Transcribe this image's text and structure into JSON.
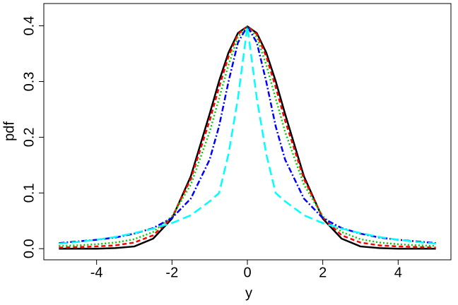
{
  "chart_data": {
    "type": "line",
    "xlabel": "y",
    "ylabel": "pdf",
    "x": [
      -5,
      -4.5,
      -4,
      -3.5,
      -3,
      -2.5,
      -2,
      -1.5,
      -1,
      -0.75,
      -0.5,
      -0.25,
      0,
      0.25,
      0.5,
      0.75,
      1,
      1.5,
      2,
      2.5,
      3,
      3.5,
      4,
      4.5,
      5
    ],
    "series": [
      {
        "color": "#000000",
        "linestyle": "solid",
        "values": [
          0,
          0,
          0,
          0.001,
          0.004,
          0.018,
          0.054,
          0.13,
          0.242,
          0.301,
          0.352,
          0.387,
          0.399,
          0.387,
          0.352,
          0.301,
          0.242,
          0.13,
          0.054,
          0.018,
          0.004,
          0.001,
          0,
          0,
          0
        ]
      },
      {
        "color": "#ff0000",
        "linestyle": "dashed",
        "values": [
          0.002,
          0.003,
          0.004,
          0.006,
          0.011,
          0.024,
          0.056,
          0.125,
          0.23,
          0.29,
          0.345,
          0.385,
          0.399,
          0.385,
          0.345,
          0.29,
          0.23,
          0.125,
          0.056,
          0.024,
          0.011,
          0.006,
          0.004,
          0.003,
          0.002
        ]
      },
      {
        "color": "#00cd00",
        "linestyle": "dotted",
        "values": [
          0.005,
          0.006,
          0.008,
          0.011,
          0.017,
          0.03,
          0.058,
          0.115,
          0.21,
          0.27,
          0.33,
          0.38,
          0.399,
          0.38,
          0.33,
          0.27,
          0.21,
          0.115,
          0.058,
          0.03,
          0.017,
          0.011,
          0.008,
          0.006,
          0.005
        ]
      },
      {
        "color": "#0000ff",
        "linestyle": "dotdash",
        "values": [
          0.01,
          0.013,
          0.016,
          0.02,
          0.027,
          0.037,
          0.055,
          0.09,
          0.16,
          0.22,
          0.3,
          0.37,
          0.399,
          0.37,
          0.3,
          0.22,
          0.16,
          0.09,
          0.055,
          0.037,
          0.027,
          0.02,
          0.016,
          0.013,
          0.01
        ]
      },
      {
        "color": "#00ffff",
        "linestyle": "longdash",
        "values": [
          0.009,
          0.012,
          0.016,
          0.021,
          0.028,
          0.036,
          0.046,
          0.06,
          0.085,
          0.1,
          0.17,
          0.27,
          0.399,
          0.27,
          0.17,
          0.1,
          0.085,
          0.06,
          0.046,
          0.036,
          0.028,
          0.021,
          0.016,
          0.012,
          0.009
        ]
      }
    ],
    "xlim": [
      -5.4,
      5.4
    ],
    "ylim": [
      -0.02,
      0.44
    ],
    "xticks": [
      -4,
      -2,
      0,
      2,
      4
    ],
    "yticks": [
      {
        "value": 0,
        "label": "0.0"
      },
      0.1,
      0.2,
      0.3,
      0.4
    ]
  }
}
